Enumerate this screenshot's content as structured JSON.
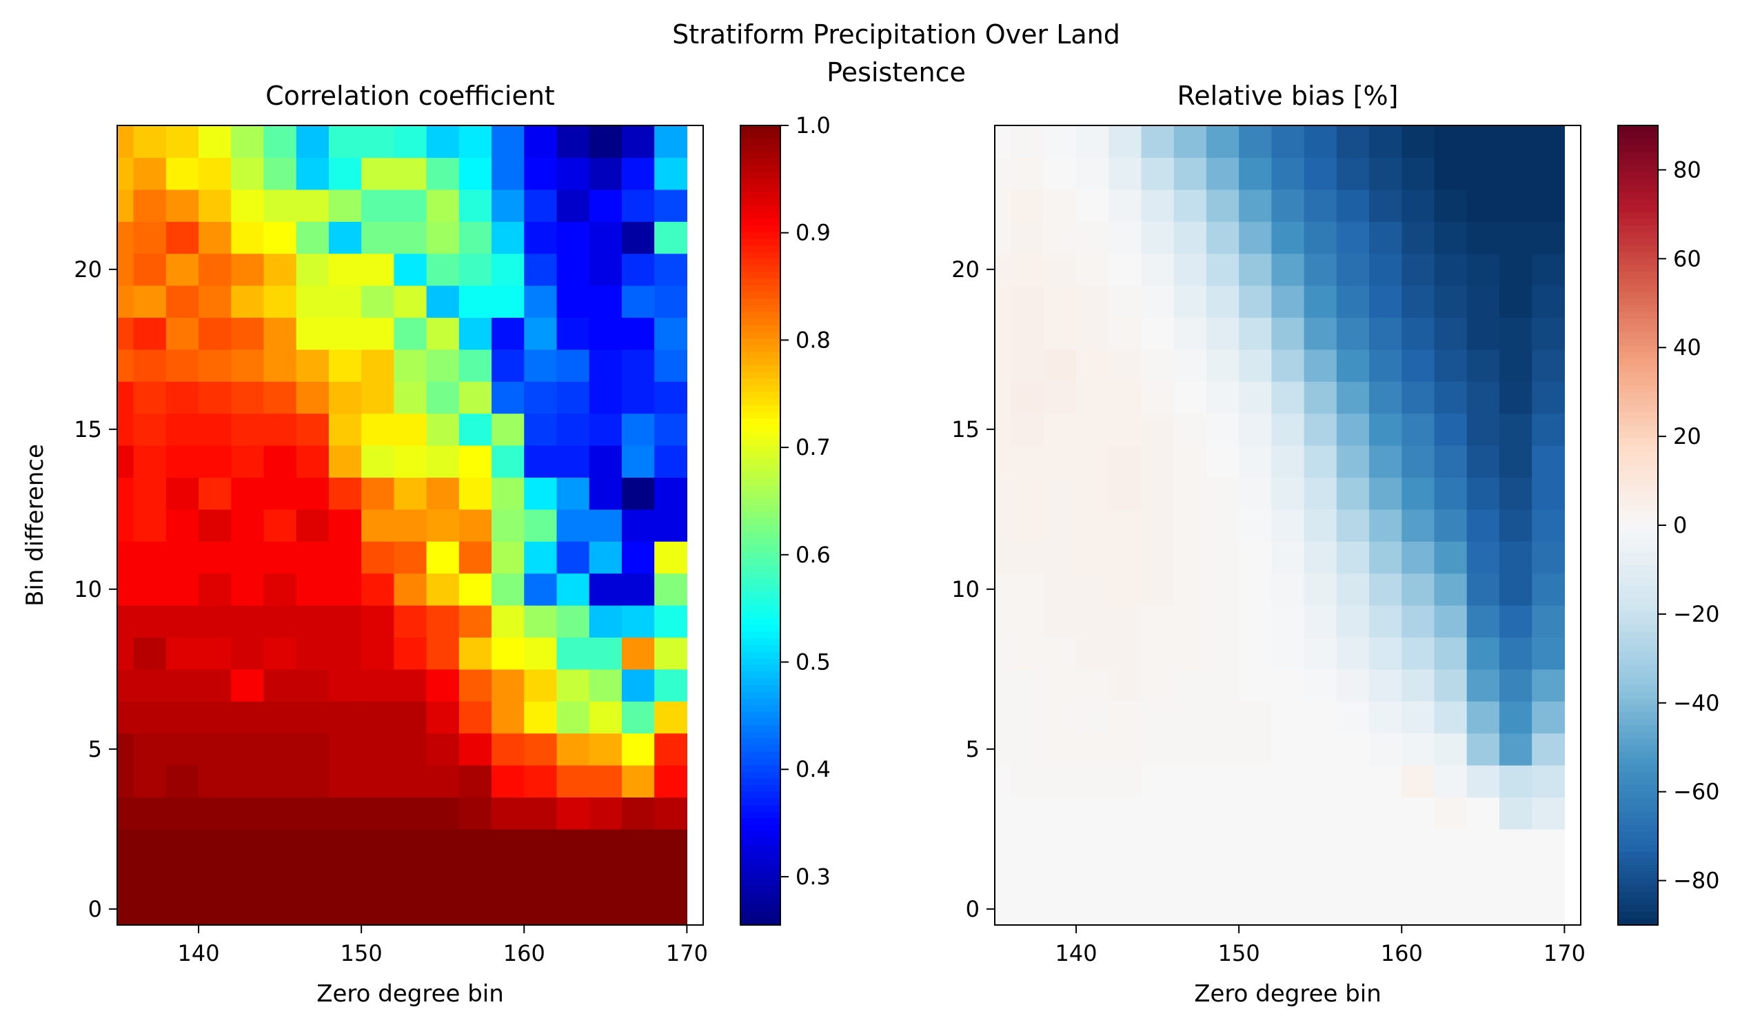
{
  "figure": {
    "suptitle_line1": "Stratiform Precipitation Over Land",
    "suptitle_line2": "Pesistence"
  },
  "chart_data": [
    {
      "type": "heatmap",
      "title": "Correlation coefficient",
      "xlabel": "Zero degree bin",
      "ylabel": "Bin difference",
      "x_start": 135,
      "x_step": 2,
      "nx": 18,
      "y_start": 0,
      "y_step": 1,
      "ny": 25,
      "xlim": [
        135,
        171
      ],
      "ylim": [
        -0.5,
        24.5
      ],
      "xticks": [
        140,
        150,
        160,
        170
      ],
      "yticks": [
        0,
        5,
        10,
        15,
        20
      ],
      "colormap": "jet",
      "colorbar": {
        "vmin": 0.255,
        "vmax": 1.0,
        "ticks": [
          "1.0",
          "0.9",
          "0.8",
          "0.7",
          "0.6",
          "0.5",
          "0.4",
          "0.3"
        ]
      },
      "values": [
        [
          1,
          1,
          1,
          1,
          1,
          1,
          1,
          1,
          1,
          1,
          1,
          1,
          1,
          1,
          1,
          1,
          1,
          1
        ],
        [
          1,
          1,
          1,
          1,
          1,
          1,
          1,
          1,
          1,
          1,
          1,
          1,
          1,
          1,
          1,
          1,
          1,
          1
        ],
        [
          1,
          1,
          1,
          1,
          1,
          1,
          1,
          1,
          1,
          1,
          1,
          1,
          1,
          1,
          1,
          1,
          1,
          1
        ],
        [
          0.99,
          0.99,
          0.99,
          0.99,
          0.99,
          0.99,
          0.99,
          0.99,
          0.99,
          0.99,
          0.99,
          0.98,
          0.96,
          0.96,
          0.94,
          0.95,
          0.97,
          0.96
        ],
        [
          0.98,
          0.97,
          0.98,
          0.97,
          0.97,
          0.97,
          0.97,
          0.96,
          0.96,
          0.96,
          0.96,
          0.97,
          0.9,
          0.89,
          0.85,
          0.85,
          0.79,
          0.9
        ],
        [
          0.98,
          0.97,
          0.97,
          0.97,
          0.97,
          0.97,
          0.97,
          0.96,
          0.96,
          0.96,
          0.95,
          0.92,
          0.86,
          0.85,
          0.79,
          0.78,
          0.72,
          0.88
        ],
        [
          0.96,
          0.96,
          0.96,
          0.96,
          0.96,
          0.96,
          0.96,
          0.96,
          0.96,
          0.96,
          0.93,
          0.86,
          0.8,
          0.73,
          0.66,
          0.7,
          0.6,
          0.75
        ],
        [
          0.95,
          0.95,
          0.95,
          0.95,
          0.91,
          0.95,
          0.95,
          0.94,
          0.94,
          0.94,
          0.91,
          0.84,
          0.8,
          0.75,
          0.68,
          0.65,
          0.48,
          0.57
        ],
        [
          0.94,
          0.96,
          0.93,
          0.93,
          0.94,
          0.93,
          0.94,
          0.94,
          0.93,
          0.89,
          0.86,
          0.76,
          0.72,
          0.71,
          0.58,
          0.58,
          0.8,
          0.69
        ],
        [
          0.94,
          0.94,
          0.94,
          0.94,
          0.94,
          0.94,
          0.94,
          0.94,
          0.93,
          0.88,
          0.86,
          0.83,
          0.7,
          0.65,
          0.62,
          0.49,
          0.5,
          0.55
        ],
        [
          0.91,
          0.91,
          0.91,
          0.93,
          0.91,
          0.93,
          0.91,
          0.91,
          0.89,
          0.81,
          0.76,
          0.72,
          0.63,
          0.43,
          0.51,
          0.32,
          0.32,
          0.63
        ],
        [
          0.91,
          0.91,
          0.91,
          0.91,
          0.91,
          0.91,
          0.91,
          0.91,
          0.85,
          0.84,
          0.72,
          0.83,
          0.66,
          0.51,
          0.4,
          0.48,
          0.35,
          0.71
        ],
        [
          0.9,
          0.89,
          0.91,
          0.93,
          0.91,
          0.89,
          0.93,
          0.91,
          0.8,
          0.8,
          0.79,
          0.8,
          0.64,
          0.61,
          0.44,
          0.44,
          0.33,
          0.33
        ],
        [
          0.9,
          0.89,
          0.92,
          0.88,
          0.91,
          0.91,
          0.91,
          0.87,
          0.82,
          0.77,
          0.8,
          0.73,
          0.65,
          0.52,
          0.46,
          0.33,
          0.26,
          0.33
        ],
        [
          0.92,
          0.89,
          0.9,
          0.9,
          0.89,
          0.91,
          0.89,
          0.78,
          0.7,
          0.71,
          0.7,
          0.72,
          0.57,
          0.37,
          0.37,
          0.33,
          0.44,
          0.38
        ],
        [
          0.89,
          0.88,
          0.89,
          0.89,
          0.88,
          0.88,
          0.87,
          0.76,
          0.73,
          0.73,
          0.67,
          0.56,
          0.65,
          0.39,
          0.38,
          0.37,
          0.43,
          0.4
        ],
        [
          0.89,
          0.87,
          0.88,
          0.87,
          0.86,
          0.85,
          0.81,
          0.77,
          0.76,
          0.67,
          0.62,
          0.67,
          0.42,
          0.4,
          0.39,
          0.36,
          0.37,
          0.38
        ],
        [
          0.84,
          0.85,
          0.84,
          0.83,
          0.82,
          0.8,
          0.78,
          0.74,
          0.76,
          0.66,
          0.64,
          0.6,
          0.38,
          0.43,
          0.42,
          0.36,
          0.37,
          0.42
        ],
        [
          0.86,
          0.88,
          0.82,
          0.85,
          0.84,
          0.8,
          0.71,
          0.71,
          0.71,
          0.61,
          0.68,
          0.5,
          0.36,
          0.46,
          0.36,
          0.35,
          0.35,
          0.43
        ],
        [
          0.81,
          0.8,
          0.84,
          0.82,
          0.77,
          0.75,
          0.7,
          0.7,
          0.66,
          0.69,
          0.49,
          0.54,
          0.54,
          0.44,
          0.35,
          0.35,
          0.42,
          0.41
        ],
        [
          0.82,
          0.84,
          0.8,
          0.83,
          0.81,
          0.77,
          0.69,
          0.71,
          0.71,
          0.52,
          0.6,
          0.58,
          0.55,
          0.39,
          0.35,
          0.33,
          0.38,
          0.4
        ],
        [
          0.82,
          0.83,
          0.86,
          0.8,
          0.73,
          0.72,
          0.63,
          0.5,
          0.62,
          0.62,
          0.65,
          0.6,
          0.5,
          0.36,
          0.35,
          0.33,
          0.28,
          0.58
        ],
        [
          0.78,
          0.82,
          0.8,
          0.76,
          0.71,
          0.69,
          0.69,
          0.65,
          0.6,
          0.6,
          0.66,
          0.56,
          0.46,
          0.38,
          0.31,
          0.35,
          0.38,
          0.4
        ],
        [
          0.77,
          0.79,
          0.73,
          0.74,
          0.68,
          0.62,
          0.5,
          0.55,
          0.68,
          0.68,
          0.6,
          0.53,
          0.43,
          0.35,
          0.33,
          0.3,
          0.36,
          0.5
        ],
        [
          0.78,
          0.76,
          0.75,
          0.71,
          0.66,
          0.6,
          0.49,
          0.57,
          0.57,
          0.56,
          0.5,
          0.52,
          0.43,
          0.34,
          0.29,
          0.26,
          0.3,
          0.47
        ]
      ]
    },
    {
      "type": "heatmap",
      "title": "Relative bias [%]",
      "xlabel": "Zero degree bin",
      "ylabel": "",
      "x_start": 135,
      "x_step": 2,
      "nx": 18,
      "y_start": 0,
      "y_step": 1,
      "ny": 25,
      "xlim": [
        135,
        171
      ],
      "ylim": [
        -0.5,
        24.5
      ],
      "xticks": [
        140,
        150,
        160,
        170
      ],
      "yticks": [
        0,
        5,
        10,
        15,
        20
      ],
      "colormap": "RdBu_r",
      "colorbar": {
        "vmin": -90,
        "vmax": 90,
        "ticks": [
          "80",
          "60",
          "40",
          "20",
          "0",
          "−20",
          "−40",
          "−60",
          "−80"
        ]
      },
      "values": [
        [
          0,
          0,
          0,
          0,
          0,
          0,
          0,
          0,
          0,
          0,
          0,
          0,
          0,
          0,
          0,
          0,
          0,
          0
        ],
        [
          0,
          0,
          0,
          0,
          0,
          0,
          0,
          0,
          0,
          0,
          0,
          0,
          0,
          0,
          0,
          0,
          0,
          0
        ],
        [
          0,
          0,
          0,
          0,
          0,
          0,
          0,
          0,
          0,
          0,
          0,
          0,
          0,
          0,
          0,
          0,
          0,
          0
        ],
        [
          0,
          0,
          0,
          0,
          0,
          0,
          0,
          0,
          0,
          0,
          0,
          0,
          0,
          0,
          2,
          0,
          -15,
          -10
        ],
        [
          0,
          1,
          1,
          1,
          1,
          0,
          0,
          0,
          0,
          0,
          0,
          0,
          0,
          4,
          -3,
          -12,
          -20,
          -18
        ],
        [
          1,
          1,
          2,
          2,
          2,
          1,
          1,
          1,
          1,
          0,
          0,
          0,
          -2,
          -3,
          -6,
          -33,
          -50,
          -28
        ],
        [
          1,
          1,
          2,
          1,
          2,
          1,
          1,
          1,
          1,
          0,
          0,
          -1,
          -5,
          -8,
          -18,
          -40,
          -55,
          -40
        ],
        [
          1,
          1,
          2,
          2,
          3,
          2,
          1,
          1,
          0,
          0,
          -1,
          -4,
          -9,
          -15,
          -25,
          -50,
          -60,
          -48
        ],
        [
          1,
          2,
          2,
          3,
          3,
          2,
          2,
          1,
          0,
          -1,
          -3,
          -8,
          -14,
          -22,
          -30,
          -55,
          -65,
          -58
        ],
        [
          2,
          2,
          3,
          3,
          3,
          2,
          2,
          1,
          0,
          -1,
          -5,
          -12,
          -20,
          -28,
          -38,
          -62,
          -70,
          -60
        ],
        [
          2,
          2,
          3,
          3,
          4,
          3,
          2,
          1,
          0,
          -2,
          -7,
          -15,
          -25,
          -35,
          -45,
          -68,
          -75,
          -65
        ],
        [
          3,
          3,
          3,
          4,
          4,
          3,
          2,
          1,
          0,
          -3,
          -10,
          -20,
          -32,
          -42,
          -52,
          -70,
          -75,
          -68
        ],
        [
          3,
          4,
          3,
          4,
          4,
          3,
          2,
          1,
          -1,
          -5,
          -14,
          -26,
          -38,
          -50,
          -60,
          -72,
          -78,
          -70
        ],
        [
          3,
          4,
          3,
          4,
          5,
          3,
          2,
          1,
          -2,
          -8,
          -18,
          -32,
          -45,
          -55,
          -65,
          -75,
          -80,
          -72
        ],
        [
          4,
          4,
          4,
          4,
          5,
          3,
          2,
          0,
          -3,
          -10,
          -22,
          -38,
          -50,
          -60,
          -68,
          -78,
          -82,
          -72
        ],
        [
          4,
          5,
          4,
          4,
          4,
          3,
          1,
          -1,
          -5,
          -14,
          -28,
          -42,
          -55,
          -62,
          -72,
          -80,
          -82,
          -75
        ],
        [
          4,
          6,
          5,
          4,
          4,
          2,
          0,
          -3,
          -8,
          -20,
          -35,
          -48,
          -60,
          -68,
          -75,
          -80,
          -85,
          -78
        ],
        [
          4,
          5,
          6,
          4,
          3,
          1,
          -2,
          -6,
          -14,
          -28,
          -42,
          -55,
          -65,
          -72,
          -78,
          -82,
          -86,
          -80
        ],
        [
          4,
          5,
          4,
          3,
          2,
          0,
          -4,
          -10,
          -20,
          -35,
          -50,
          -60,
          -68,
          -75,
          -80,
          -85,
          -86,
          -82
        ],
        [
          4,
          5,
          4,
          3,
          1,
          -2,
          -8,
          -16,
          -28,
          -42,
          -55,
          -65,
          -72,
          -78,
          -82,
          -85,
          -88,
          -84
        ],
        [
          3,
          4,
          3,
          2,
          0,
          -4,
          -12,
          -22,
          -35,
          -48,
          -60,
          -68,
          -74,
          -80,
          -84,
          -86,
          -88,
          -86
        ],
        [
          2,
          3,
          2,
          1,
          -2,
          -8,
          -16,
          -28,
          -42,
          -55,
          -64,
          -70,
          -76,
          -82,
          -86,
          -88,
          -88,
          -88
        ],
        [
          2,
          4,
          2,
          0,
          -4,
          -12,
          -22,
          -35,
          -48,
          -60,
          -68,
          -74,
          -80,
          -84,
          -88,
          -90,
          -90,
          -90
        ],
        [
          1,
          2,
          0,
          -2,
          -8,
          -20,
          -30,
          -42,
          -55,
          -65,
          -72,
          -78,
          -82,
          -86,
          -90,
          -90,
          -90,
          -90
        ],
        [
          0,
          1,
          -1,
          -3,
          -12,
          -28,
          -38,
          -48,
          -60,
          -68,
          -74,
          -80,
          -84,
          -88,
          -90,
          -90,
          -90,
          -90
        ]
      ]
    }
  ]
}
